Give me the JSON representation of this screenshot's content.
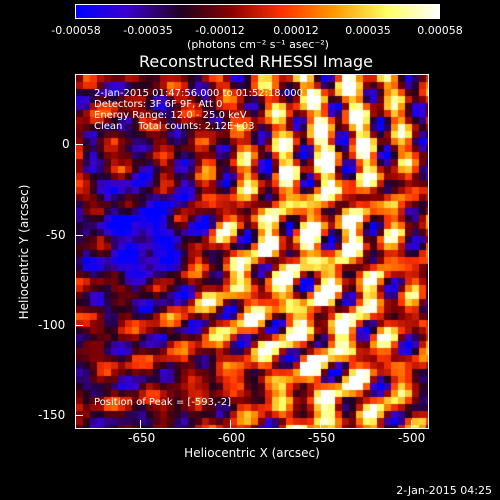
{
  "colorbar": {
    "tick_labels": [
      "-0.00058",
      "-0.00035",
      "-0.00012",
      "0.00012",
      "0.00035",
      "0.00058"
    ],
    "units": "(photons cm⁻² s⁻¹ asec⁻²)",
    "colors": [
      "#0000ff",
      "#3a00cc",
      "#200020",
      "#8b0000",
      "#ff3300",
      "#ff9900",
      "#ffff66",
      "#ffffff"
    ]
  },
  "title": "Reconstructed RHESSI Image",
  "info": {
    "time_range": "2-Jan-2015 01:47:56.000 to 01:52:18.000",
    "detectors": "Detectors: 3F 6F 9F, Att 0",
    "energy": "Energy Range: 12.0 - 25.0 keV",
    "clean": "Clean     Total counts: 2.12E+03",
    "peak": "Position of Peak = [-593,-2]"
  },
  "axes": {
    "xlabel": "Heliocentric X (arcsec)",
    "ylabel": "Heliocentric Y (arcsec)",
    "x_ticks": [
      "-650",
      "-600",
      "-550",
      "-500"
    ],
    "y_ticks": [
      "0",
      "-50",
      "-100",
      "-150"
    ],
    "xlim": [
      -672,
      -495
    ],
    "ylim": [
      -154,
      24
    ]
  },
  "footer_timestamp": "2-Jan-2015 04:25"
}
